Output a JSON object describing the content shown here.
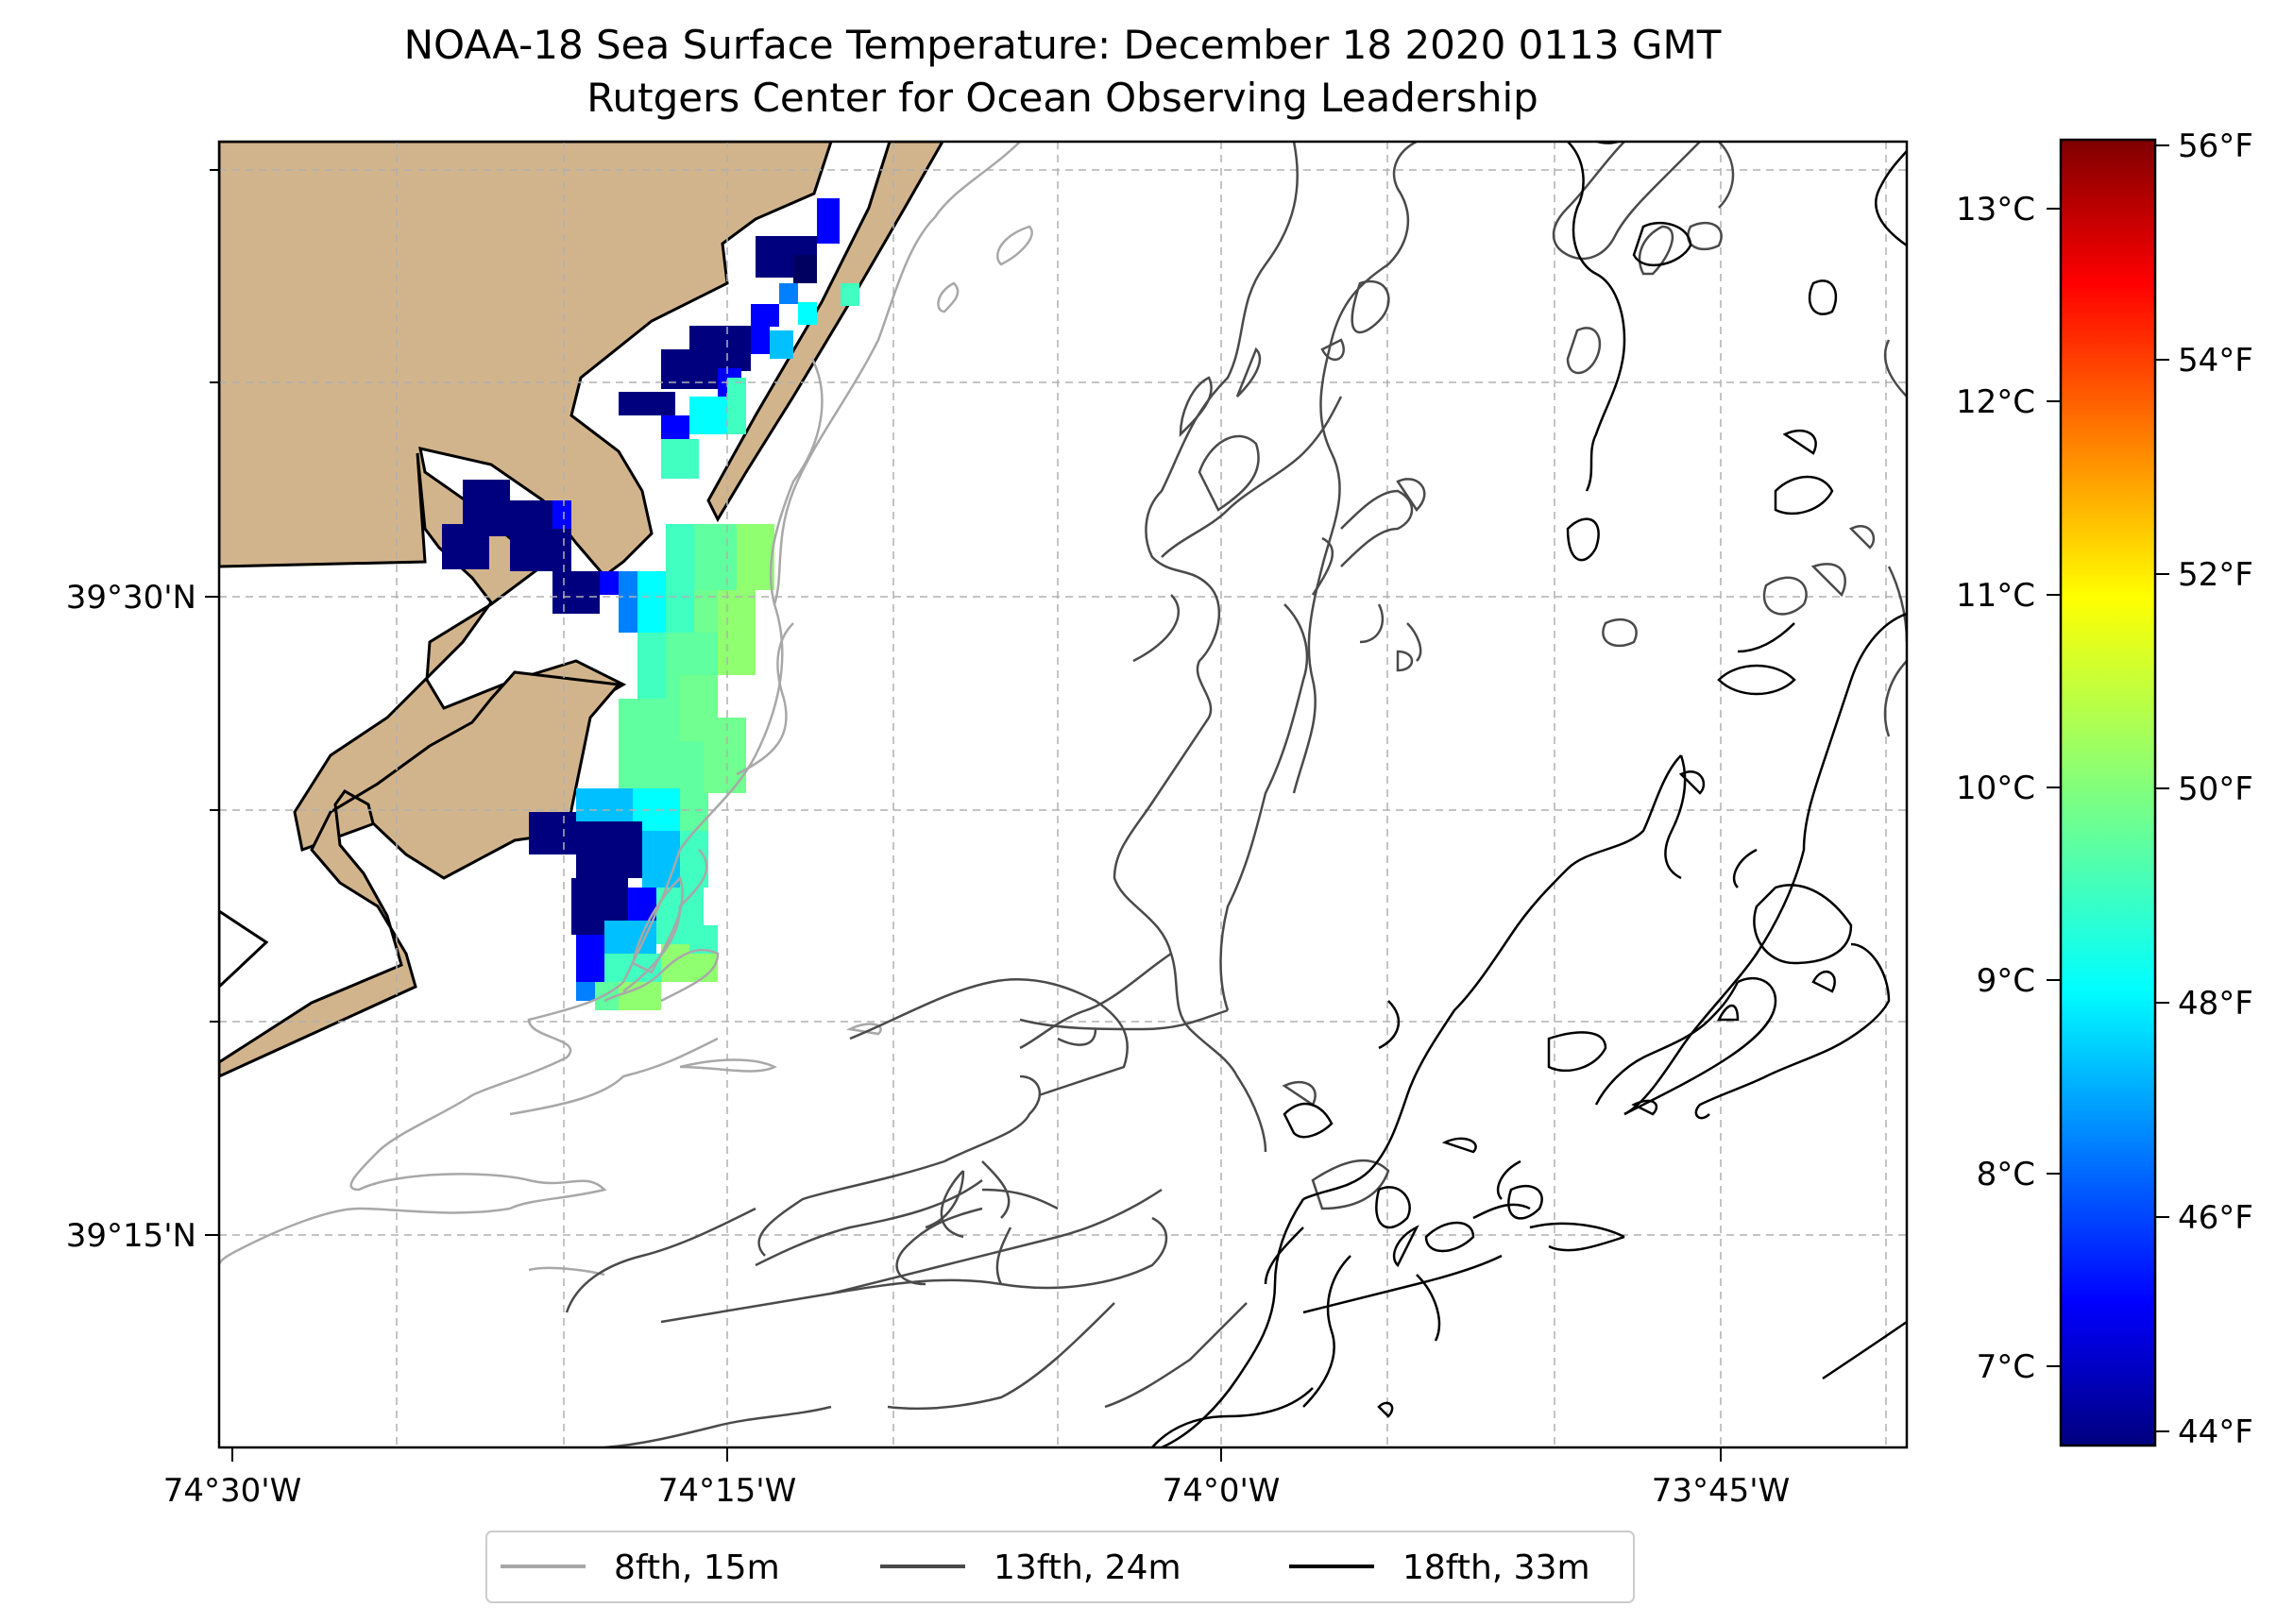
{
  "title": "NOAA-18 Sea Surface Temperature: December 18 2020 0113 GMT",
  "subtitle": "Rutgers Center for Ocean Observing Leadership",
  "map": {
    "x_ticks": [
      "74°30'W",
      "74°15'W",
      "74°0'W",
      "73°45'W"
    ],
    "y_ticks": [
      "39°30'N",
      "39°15'N"
    ],
    "land_color": "#d2b48c",
    "grid": true
  },
  "colorbar": {
    "celsius_ticks": [
      "13°C",
      "12°C",
      "11°C",
      "10°C",
      "9°C",
      "8°C",
      "7°C"
    ],
    "fahrenheit_ticks": [
      "56°F",
      "54°F",
      "52°F",
      "50°F",
      "48°F",
      "46°F",
      "44°F"
    ],
    "colormap": "jet"
  },
  "legend": {
    "items": [
      {
        "label": "8fth, 15m",
        "color": "#a8a8a8"
      },
      {
        "label": "13fth, 24m",
        "color": "#4a4a4a"
      },
      {
        "label": "18fth, 33m",
        "color": "#000000"
      }
    ]
  }
}
